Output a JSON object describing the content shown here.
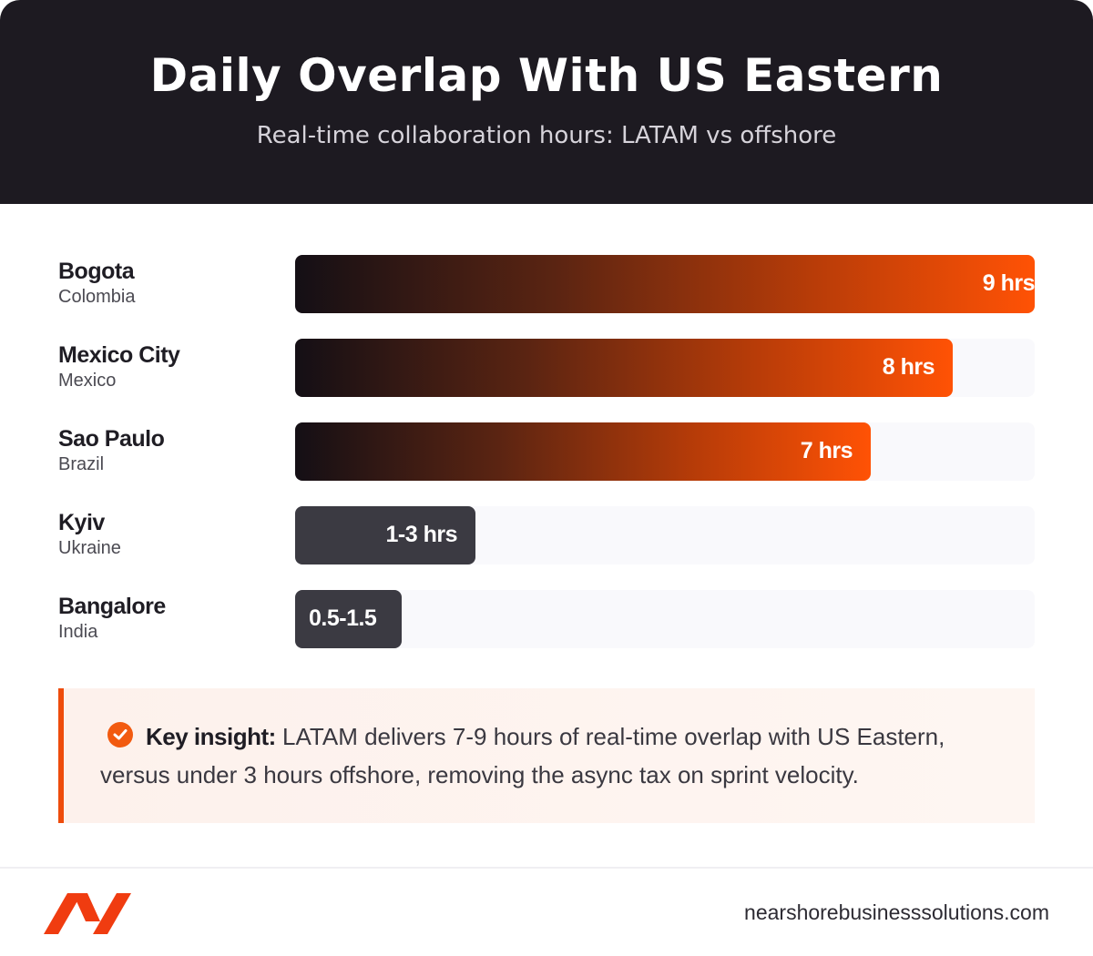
{
  "header": {
    "title": "Daily Overlap With US Eastern",
    "subtitle": "Real-time collaboration hours: LATAM vs offshore"
  },
  "chart_data": {
    "type": "bar",
    "orientation": "horizontal",
    "title": "Daily Overlap With US Eastern",
    "subtitle": "Real-time collaboration hours: LATAM vs offshore",
    "xlim": [
      0,
      9
    ],
    "unit": "hrs",
    "categories": [
      {
        "city": "Bogota",
        "country": "Colombia",
        "value": 9,
        "label": "9 hrs",
        "group": "latam"
      },
      {
        "city": "Mexico City",
        "country": "Mexico",
        "value": 8,
        "label": "8 hrs",
        "group": "latam"
      },
      {
        "city": "Sao Paulo",
        "country": "Brazil",
        "value": 7,
        "label": "7 hrs",
        "group": "latam"
      },
      {
        "city": "Kyiv",
        "country": "Ukraine",
        "value": 2.2,
        "label": "1-3 hrs",
        "group": "offshore"
      },
      {
        "city": "Bangalore",
        "country": "India",
        "value": 1.3,
        "label": "0.5-1.5",
        "group": "offshore"
      }
    ],
    "colors": {
      "latam_start": "#140f15",
      "latam_end": "#ff5205",
      "offshore": "#3b3a42",
      "track": "#f9f9fc"
    }
  },
  "insight": {
    "label": "Key insight:",
    "text": "LATAM delivers 7-9 hours of real-time overlap with US Eastern, versus under 3 hours offshore, removing the async tax on sprint velocity.",
    "accent": "#ee4c0c"
  },
  "footer": {
    "logo_icon": "nearshore-logo-icon",
    "website": "nearshorebusinesssolutions.com"
  }
}
